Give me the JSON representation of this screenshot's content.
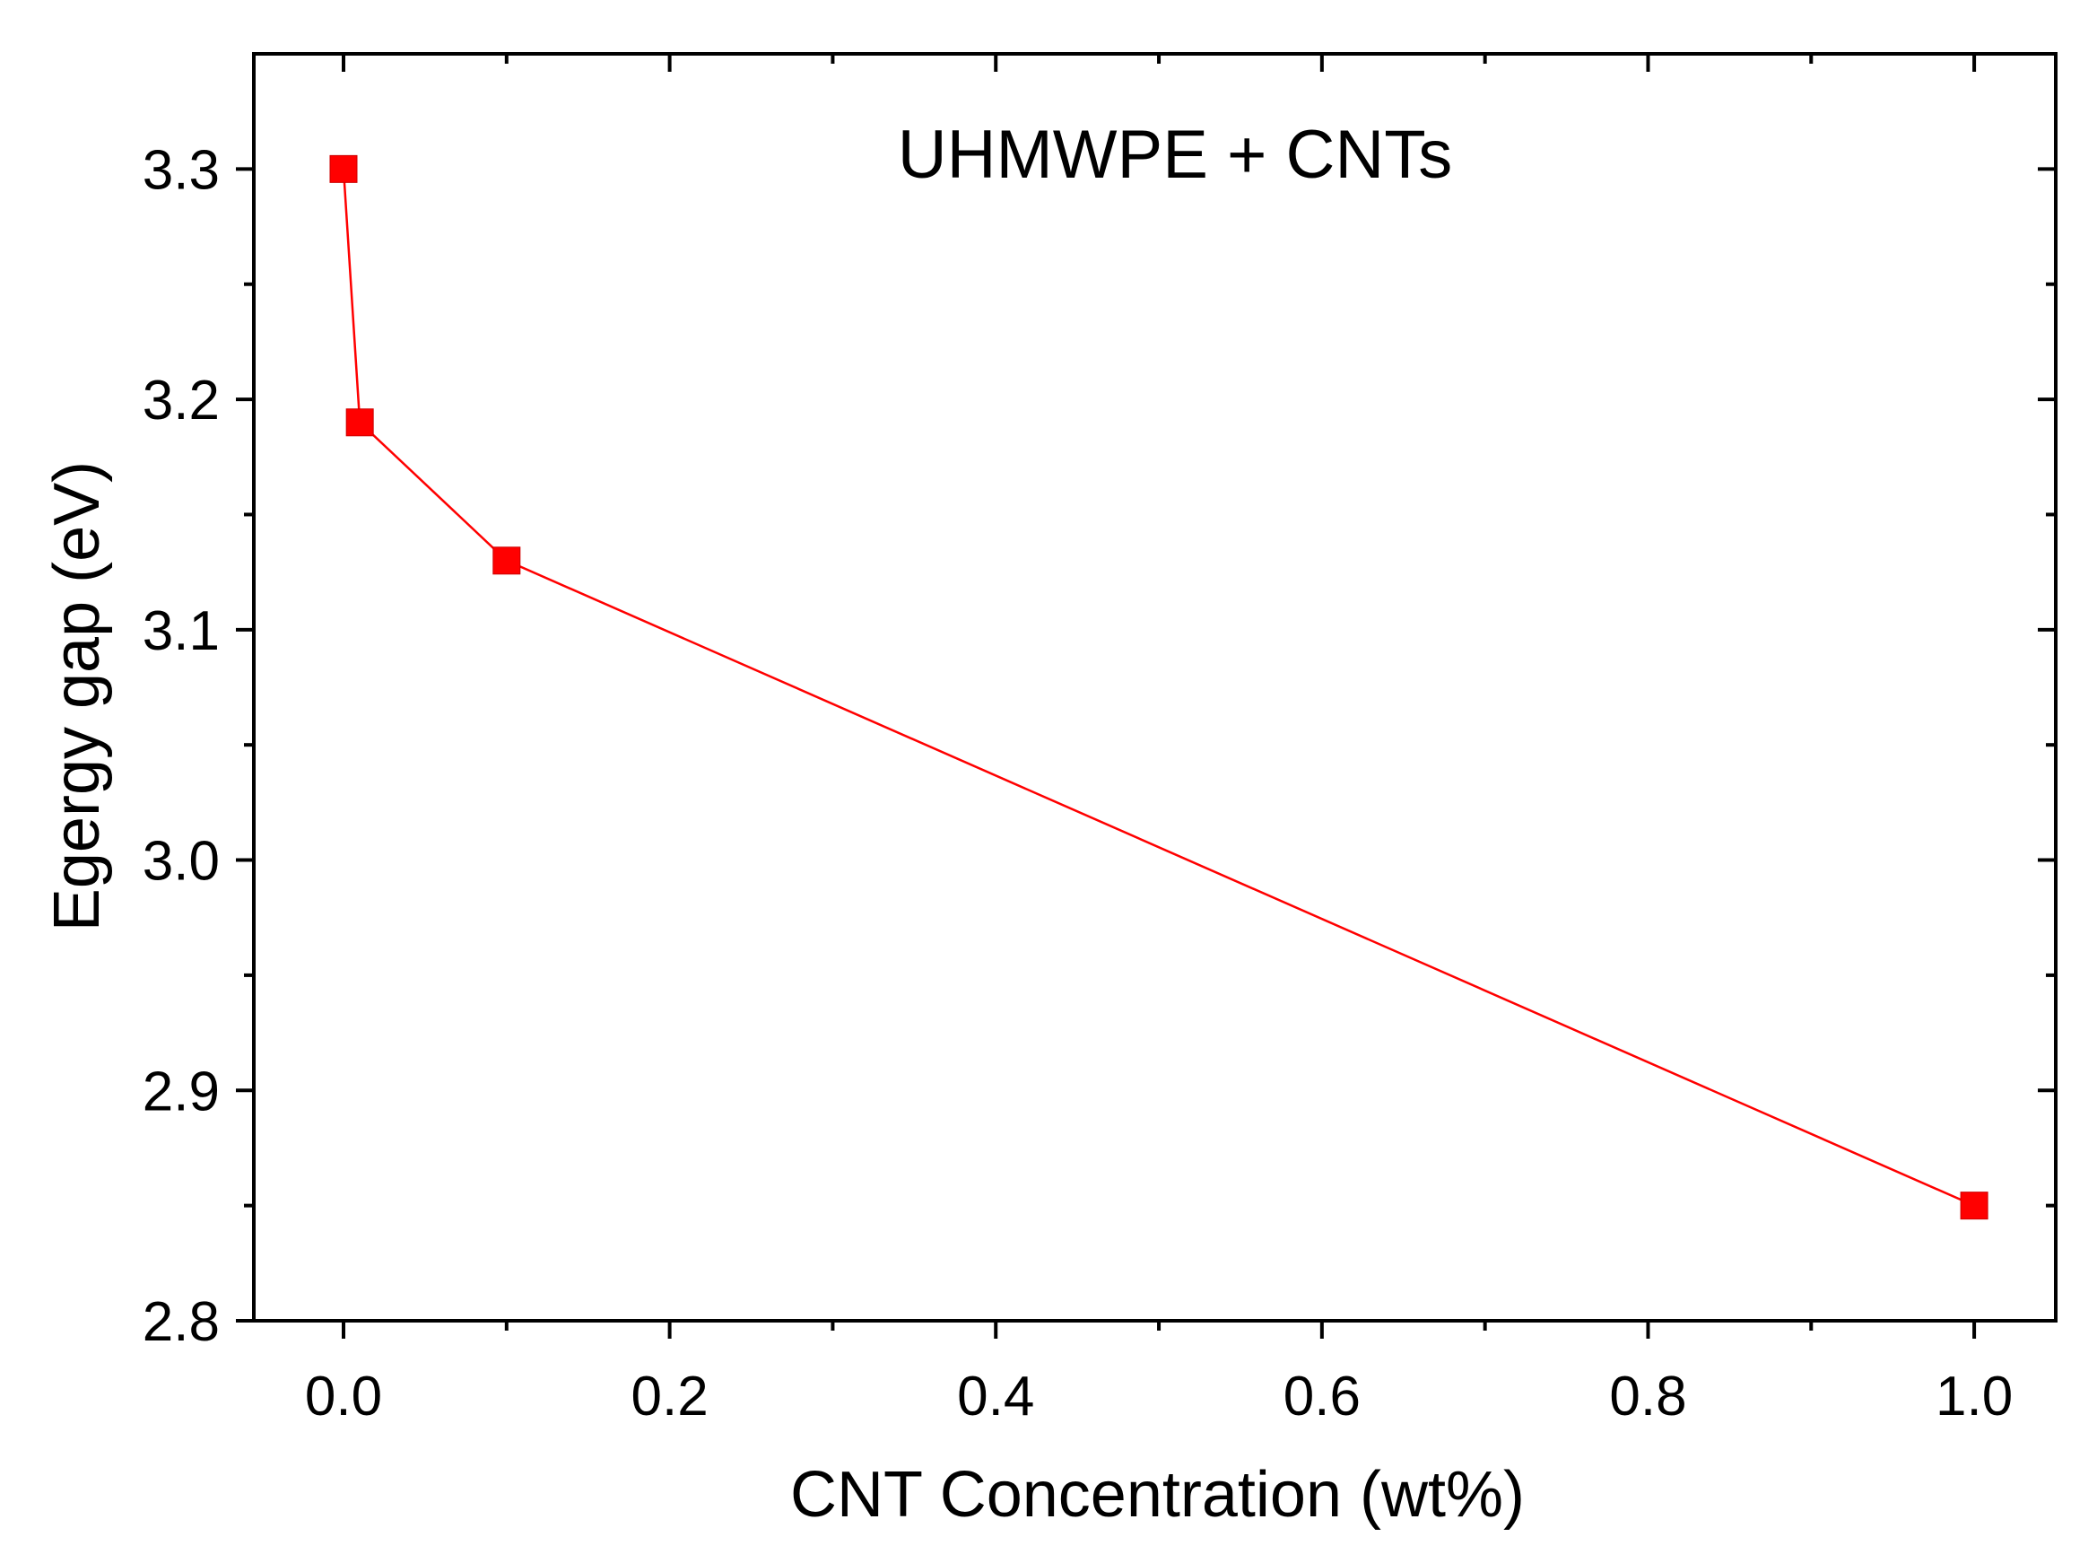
{
  "chart_data": {
    "type": "line",
    "title": "",
    "annotation": "UHMWPE + CNTs",
    "xlabel": "CNT Concentration (wt%)",
    "ylabel": "Egergy gap (eV)",
    "xlim": [
      -0.055,
      1.05
    ],
    "ylim": [
      2.8,
      3.35
    ],
    "x_ticks": [
      0.0,
      0.2,
      0.4,
      0.6,
      0.8,
      1.0
    ],
    "x_tick_labels": [
      "0.0",
      "0.2",
      "0.4",
      "0.6",
      "0.8",
      "1.0"
    ],
    "x_minor_ticks": [
      0.1,
      0.3,
      0.5,
      0.7,
      0.9
    ],
    "y_ticks": [
      2.8,
      2.9,
      3.0,
      3.1,
      3.2,
      3.3
    ],
    "y_tick_labels": [
      "2.8",
      "2.9",
      "3.0",
      "3.1",
      "3.2",
      "3.3"
    ],
    "y_minor_ticks": [
      2.85,
      2.95,
      3.05,
      3.15,
      3.25
    ],
    "grid": false,
    "series": [
      {
        "name": "UHMWPE + CNTs",
        "color": "#ff0000",
        "marker": "square",
        "x": [
          0.0,
          0.01,
          0.1,
          1.0
        ],
        "y": [
          3.3,
          3.19,
          3.13,
          2.85
        ]
      }
    ]
  }
}
